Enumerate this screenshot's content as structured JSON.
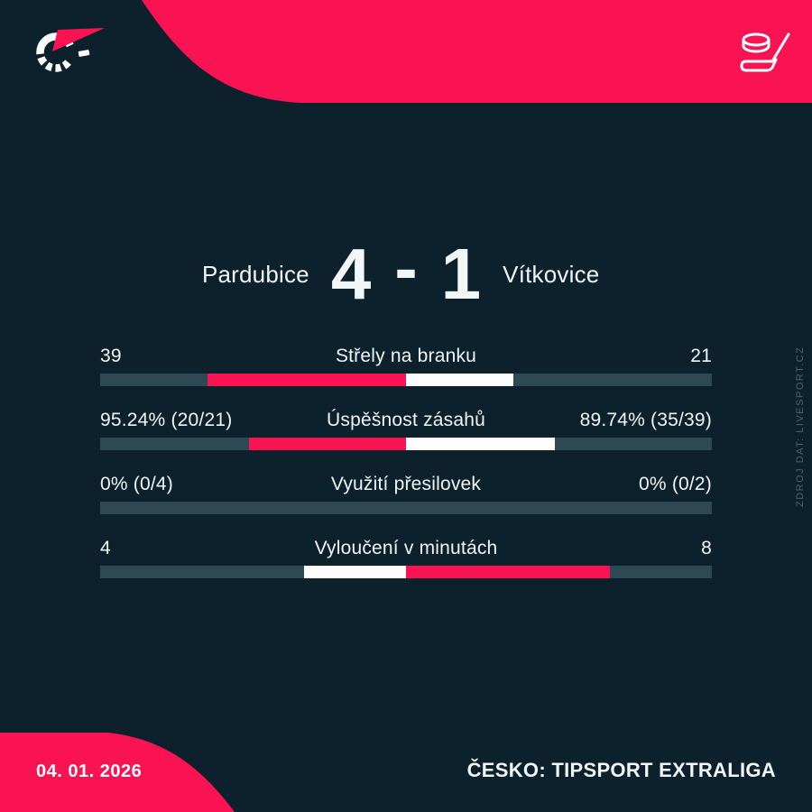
{
  "brand": {
    "accent_color": "#fa1352",
    "bg_color": "#0d212c",
    "bar_track_color": "#2d4a54",
    "text_color": "#f1f6f7",
    "muted_color": "#4a646e",
    "logo_icon": "livesport-logo",
    "sport_icon": "hockey-stick-and-puck"
  },
  "scoreboard": {
    "home_team": "Pardubice",
    "home_score": "4",
    "score_separator": "-",
    "away_score": "1",
    "away_team": "Vítkovice"
  },
  "stats": {
    "rows": [
      {
        "label": "Střely na branku",
        "home": "39",
        "away": "21",
        "home_pct": 32.5,
        "away_pct": 17.5,
        "home_color": "#fa1352",
        "away_color": "#ffffff"
      },
      {
        "label": "Úspěšnost zásahů",
        "home": "95.24% (20/21)",
        "away": "89.74% (35/39)",
        "home_pct": 25.7,
        "away_pct": 24.3,
        "home_color": "#fa1352",
        "away_color": "#ffffff"
      },
      {
        "label": "Využití přesilovek",
        "home": "0% (0/4)",
        "away": "0% (0/2)",
        "home_pct": 0,
        "away_pct": 0,
        "home_color": "#fa1352",
        "away_color": "#ffffff"
      },
      {
        "label": "Vyloučení v minutách",
        "home": "4",
        "away": "8",
        "home_pct": 16.7,
        "away_pct": 33.3,
        "home_color": "#ffffff",
        "away_color": "#fa1352"
      }
    ]
  },
  "footer": {
    "date": "04. 01. 2026",
    "league": "ČESKO: TIPSPORT EXTRALIGA"
  },
  "watermark": "ZDROJ DAT: LIVESPORT.CZ",
  "chart_data": {
    "type": "bar",
    "title": "Pardubice 4 - 1 Vítkovice",
    "categories": [
      "Střely na branku",
      "Úspěšnost zásahů",
      "Využití přesilovek",
      "Vyloučení v minutách"
    ],
    "series": [
      {
        "name": "Pardubice",
        "values": [
          39,
          95.24,
          0,
          4
        ]
      },
      {
        "name": "Vítkovice",
        "values": [
          21,
          89.74,
          0,
          8
        ]
      }
    ],
    "value_labels": {
      "Pardubice": [
        "39",
        "95.24% (20/21)",
        "0% (0/4)",
        "4"
      ],
      "Vítkovice": [
        "21",
        "89.74% (35/39)",
        "0% (0/2)",
        "8"
      ]
    },
    "layout": "horizontal paired bars diverging from center; larger value colored red, smaller white",
    "legend_position": "none",
    "grid": false
  }
}
